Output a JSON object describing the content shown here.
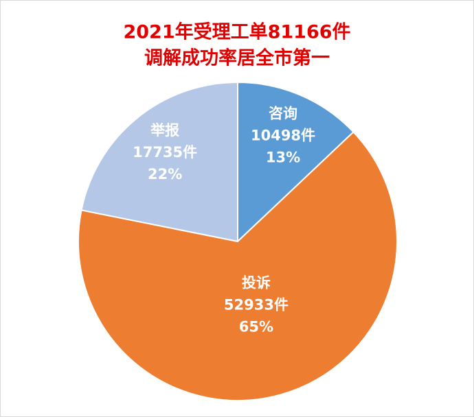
{
  "chart_data": {
    "type": "pie",
    "title": [
      "2021年受理工单81166件",
      "调解成功率居全市第一"
    ],
    "categories": [
      "咨询",
      "投诉",
      "举报"
    ],
    "values": [
      10498,
      52933,
      17735
    ],
    "value_labels": [
      "10498件",
      "52933件",
      "17735件"
    ],
    "percentages": [
      13,
      65,
      22
    ],
    "percentage_labels": [
      "13%",
      "65%",
      "22%"
    ],
    "colors": [
      "#5b9bd5",
      "#ed7d31",
      "#b4c7e7"
    ]
  }
}
